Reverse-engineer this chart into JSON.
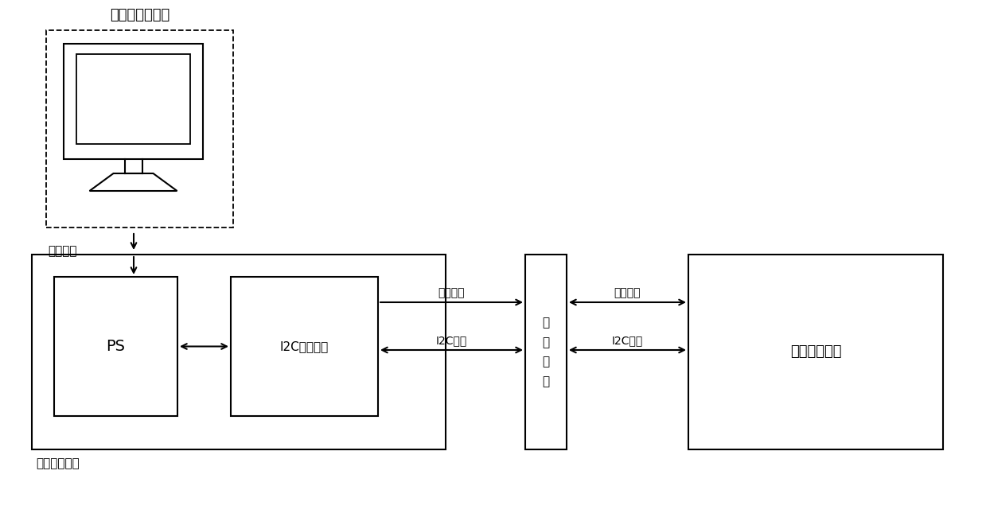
{
  "bg_color": "#ffffff",
  "line_color": "#000000",
  "computer_label": "上位机监测系统",
  "transmission_label": "传输通道",
  "data_unit_label": "数据处理单元",
  "ps_label": "PS",
  "i2c_label": "I2C采集模块",
  "backplane_label": "背\n板\n端\n口",
  "state_label": "状态采集单元",
  "select_signal_left": "选择信号",
  "select_signal_right": "选择信号",
  "i2c_signal_left": "I2C信号",
  "i2c_signal_right": "I2C信号",
  "figw": 12.39,
  "figh": 6.6,
  "dpi": 100
}
